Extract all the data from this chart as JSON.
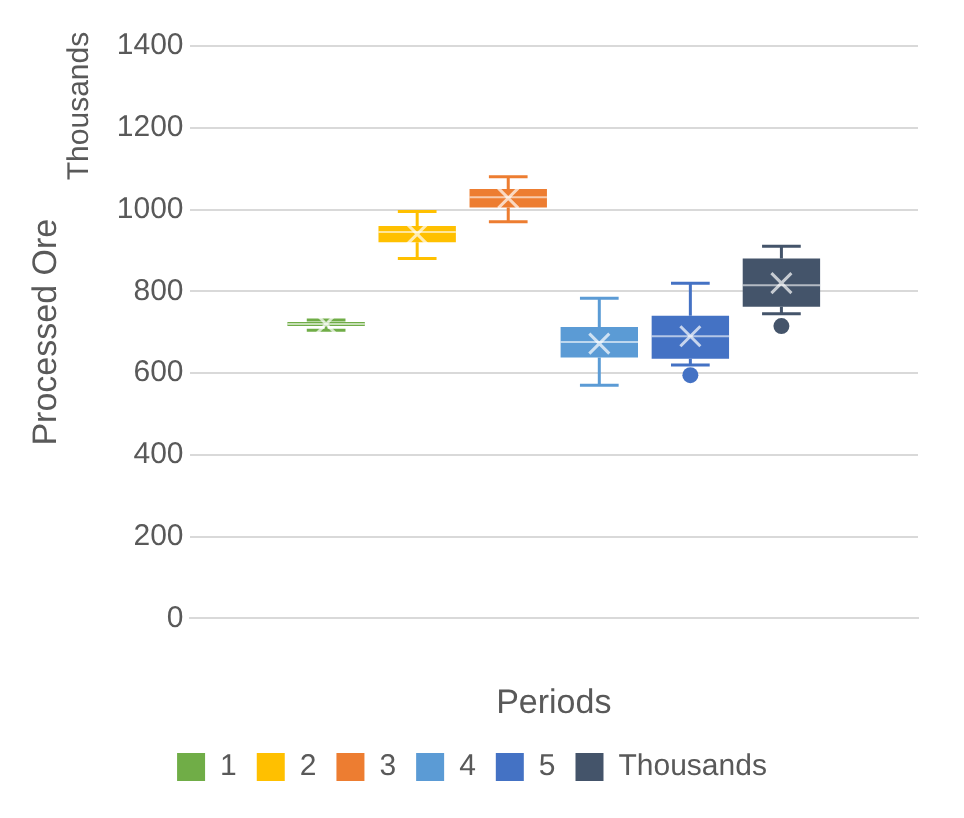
{
  "chart_data": {
    "type": "box",
    "categories": [
      null
    ],
    "xlabel": "Periods",
    "ylabel": "Processed Ore",
    "annotations": [
      "Thousands"
    ],
    "ylim": [
      0,
      1400
    ],
    "yticks": [
      0,
      200,
      400,
      600,
      800,
      1000,
      1200,
      1400
    ],
    "grid": "y",
    "legend": "bottom",
    "marker": "cross",
    "series": [
      {
        "name": "1",
        "color": "#70ad47",
        "boxes": [
          {
            "low": 705,
            "q1": 715,
            "median": 720,
            "q3": 725,
            "high": 730,
            "mean": 720
          }
        ]
      },
      {
        "name": "2",
        "color": "#ffc000",
        "boxes": [
          {
            "low": 880,
            "q1": 920,
            "median": 945,
            "q3": 960,
            "high": 995,
            "mean": 940
          }
        ]
      },
      {
        "name": "3",
        "color": "#ed7d31",
        "boxes": [
          {
            "low": 970,
            "q1": 1005,
            "median": 1030,
            "q3": 1050,
            "high": 1080,
            "mean": 1028
          }
        ]
      },
      {
        "name": "4",
        "color": "#5b9bd5",
        "boxes": [
          {
            "low": 570,
            "q1": 638,
            "median": 676,
            "q3": 713,
            "high": 783,
            "mean": 672
          }
        ]
      },
      {
        "name": "5",
        "color": "#4472c4",
        "boxes": [
          {
            "low": 620,
            "q1": 635,
            "median": 690,
            "q3": 740,
            "high": 820,
            "mean": 690,
            "outliers": [
              595
            ]
          }
        ]
      },
      {
        "name": "Thousands",
        "color": "#44546a",
        "boxes": [
          {
            "low": 745,
            "q1": 762,
            "median": 815,
            "q3": 880,
            "high": 910,
            "mean": 820,
            "outliers": [
              715
            ]
          }
        ]
      }
    ]
  }
}
